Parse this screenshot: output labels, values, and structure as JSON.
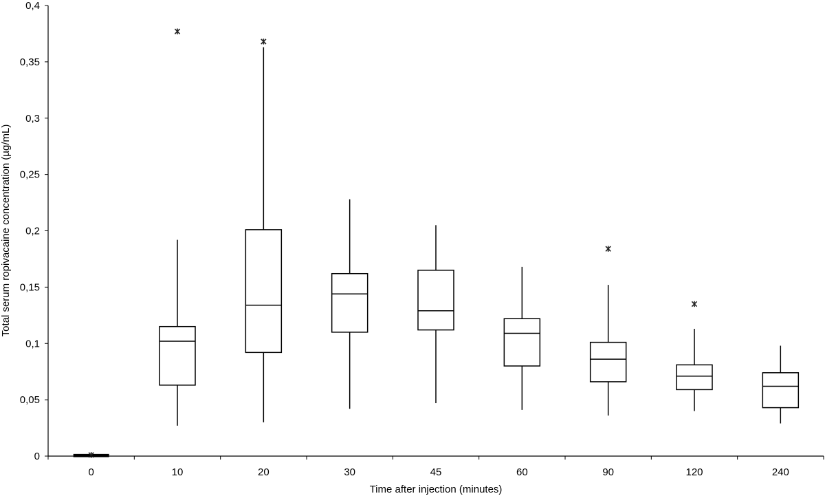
{
  "chart_data": {
    "type": "boxplot",
    "xlabel": "Time after injection (minutes)",
    "ylabel": "Total serum ropivacaine concentration (µg/mL)",
    "ylim": [
      0,
      0.4
    ],
    "yticks": [
      {
        "value": 0,
        "label": "0"
      },
      {
        "value": 0.05,
        "label": "0,05"
      },
      {
        "value": 0.1,
        "label": "0,1"
      },
      {
        "value": 0.15,
        "label": "0,15"
      },
      {
        "value": 0.2,
        "label": "0,2"
      },
      {
        "value": 0.25,
        "label": "0,25"
      },
      {
        "value": 0.3,
        "label": "0,3"
      },
      {
        "value": 0.35,
        "label": "0,35"
      },
      {
        "value": 0.4,
        "label": "0,4"
      }
    ],
    "categories": [
      "0",
      "10",
      "20",
      "30",
      "45",
      "60",
      "90",
      "120",
      "240"
    ],
    "boxes": [
      {
        "category": "0",
        "min": 0,
        "q1": 0,
        "median": 0.001,
        "q3": 0.001,
        "max": 0.001,
        "outliers": [
          0.001
        ]
      },
      {
        "category": "10",
        "min": 0.027,
        "q1": 0.063,
        "median": 0.102,
        "q3": 0.115,
        "max": 0.192,
        "outliers": [
          0.377
        ]
      },
      {
        "category": "20",
        "min": 0.03,
        "q1": 0.092,
        "median": 0.134,
        "q3": 0.201,
        "max": 0.363,
        "outliers": [
          0.368
        ]
      },
      {
        "category": "30",
        "min": 0.042,
        "q1": 0.11,
        "median": 0.144,
        "q3": 0.162,
        "max": 0.228,
        "outliers": []
      },
      {
        "category": "45",
        "min": 0.047,
        "q1": 0.112,
        "median": 0.129,
        "q3": 0.165,
        "max": 0.205,
        "outliers": []
      },
      {
        "category": "60",
        "min": 0.041,
        "q1": 0.08,
        "median": 0.109,
        "q3": 0.122,
        "max": 0.168,
        "outliers": []
      },
      {
        "category": "90",
        "min": 0.036,
        "q1": 0.066,
        "median": 0.086,
        "q3": 0.101,
        "max": 0.152,
        "outliers": [
          0.184
        ]
      },
      {
        "category": "120",
        "min": 0.04,
        "q1": 0.059,
        "median": 0.071,
        "q3": 0.081,
        "max": 0.113,
        "outliers": [
          0.135
        ]
      },
      {
        "category": "240",
        "min": 0.029,
        "q1": 0.043,
        "median": 0.062,
        "q3": 0.074,
        "max": 0.098,
        "outliers": []
      }
    ]
  }
}
